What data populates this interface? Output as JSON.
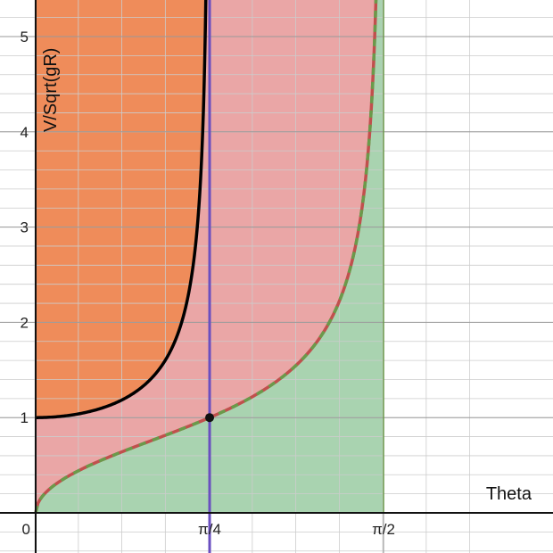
{
  "chart_data": {
    "type": "area",
    "title": "",
    "xlabel": "Theta",
    "ylabel": "V/Sqrt(gR)",
    "xlim": [
      0,
      2.0
    ],
    "ylim": [
      0,
      5.4
    ],
    "grid": true,
    "x_ticks": [
      {
        "value": 0,
        "label": "0"
      },
      {
        "value": 0.7854,
        "label": "π/4"
      },
      {
        "value": 1.5708,
        "label": "π/2"
      }
    ],
    "y_ticks": [
      {
        "value": 1,
        "label": "1"
      },
      {
        "value": 2,
        "label": "2"
      },
      {
        "value": 3,
        "label": "3"
      },
      {
        "value": 4,
        "label": "4"
      },
      {
        "value": 5,
        "label": "5"
      }
    ],
    "series": [
      {
        "function": "sqrt(tan(theta))",
        "domain": [
          0,
          1.5708
        ],
        "color": "#c0504d",
        "dash_color": "#6a9a4a"
      },
      {
        "function": "1/sqrt(cos(2*theta))",
        "domain": [
          0,
          0.7854
        ],
        "color": "#000000"
      },
      {
        "function": "theta = pi/4",
        "color": "#6a4fc0"
      }
    ],
    "regions": [
      {
        "between": [
          "x=0",
          "1/sqrt(cos(2*theta))"
        ],
        "color": "#ef8c5a"
      },
      {
        "between": [
          "sqrt(tan(theta))",
          "1/sqrt(cos(2*theta))"
        ],
        "color": "#eaa6a6"
      },
      {
        "between": [
          "0",
          "sqrt(tan(theta))"
        ],
        "color": "#a9d3b0"
      }
    ],
    "points": [
      {
        "x": 0.7854,
        "y": 1
      }
    ]
  }
}
